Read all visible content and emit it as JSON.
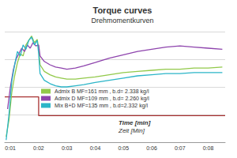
{
  "chart_data": {
    "type": "line",
    "title": "Torque curves",
    "subtitle": "Drehmomentkurven",
    "xlabel": "Time [min]",
    "xlabel_de": "Zeit [Min]",
    "xlim": [
      0.8,
      8.6
    ],
    "xticks": [
      {
        "value": 1,
        "label": "0:01"
      },
      {
        "value": 2,
        "label": "0:02"
      },
      {
        "value": 3,
        "label": "0:03"
      },
      {
        "value": 4,
        "label": "0:04"
      },
      {
        "value": 5,
        "label": "0:05"
      },
      {
        "value": 6,
        "label": "0:06"
      },
      {
        "value": 7,
        "label": "0:07"
      },
      {
        "value": 8,
        "label": "0:08"
      }
    ],
    "ylim": [
      0,
      100
    ],
    "yticks": [
      0,
      25,
      50,
      75,
      100
    ],
    "grid": true,
    "tick_labels": "x",
    "legend": "left",
    "series": [
      {
        "name": "Admix B MF=161 mm , b.d= 2.338 kg/l",
        "color": "#92c94a",
        "x": [
          0.85,
          0.95,
          1.05,
          1.15,
          1.25,
          1.35,
          1.45,
          1.55,
          1.65,
          1.75,
          1.85,
          1.95,
          2.0,
          2.05,
          2.2,
          2.4,
          2.6,
          2.8,
          3.0,
          3.3,
          3.6,
          4.0,
          4.5,
          5.0,
          5.5,
          6.0,
          6.5,
          7.0,
          7.5,
          8.0,
          8.5
        ],
        "values": [
          5,
          20,
          45,
          60,
          72,
          80,
          78,
          88,
          92,
          96,
          90,
          93,
          85,
          70,
          64,
          61,
          59,
          58,
          57,
          57,
          58,
          59,
          61,
          63,
          64,
          65,
          66,
          66,
          67,
          67,
          68
        ]
      },
      {
        "name": "Admix D MF=109 mm , b.d= 2.260 kg/l",
        "color": "#8e44ad",
        "x": [
          0.9,
          1.0,
          1.1,
          1.2,
          1.3,
          1.4,
          1.5,
          1.6,
          1.7,
          1.8,
          1.9,
          2.0,
          2.05,
          2.2,
          2.4,
          2.6,
          2.8,
          3.0,
          3.3,
          3.6,
          4.0,
          4.5,
          5.0,
          5.5,
          6.0,
          6.5,
          7.0,
          7.5,
          8.0,
          8.5
        ],
        "values": [
          30,
          50,
          65,
          75,
          80,
          85,
          82,
          88,
          85,
          90,
          87,
          88,
          78,
          73,
          70,
          68,
          67,
          66,
          67,
          69,
          72,
          76,
          79,
          82,
          84,
          86,
          87,
          86,
          85,
          84
        ]
      },
      {
        "name": "Mix B+D MF=135 mm , b.d=2.332 kg/l",
        "color": "#2bb5c8",
        "x": [
          0.85,
          0.95,
          1.05,
          1.15,
          1.25,
          1.35,
          1.45,
          1.55,
          1.65,
          1.75,
          1.85,
          1.95,
          2.0,
          2.05,
          2.2,
          2.4,
          2.6,
          2.8,
          3.0,
          3.3,
          3.6,
          4.0,
          4.5,
          5.0,
          5.5,
          6.0,
          6.5,
          7.0,
          7.5,
          8.0,
          8.5
        ],
        "values": [
          2,
          25,
          55,
          70,
          82,
          78,
          88,
          84,
          92,
          95,
          88,
          92,
          80,
          62,
          56,
          53,
          51,
          50,
          50,
          51,
          52,
          54,
          56,
          58,
          60,
          61,
          62,
          62,
          63,
          63,
          63
        ]
      },
      {
        "color": "#a83232",
        "x": [
          0.8,
          2.0,
          2.0,
          8.6
        ],
        "values": [
          41,
          41,
          24,
          24
        ]
      }
    ]
  }
}
